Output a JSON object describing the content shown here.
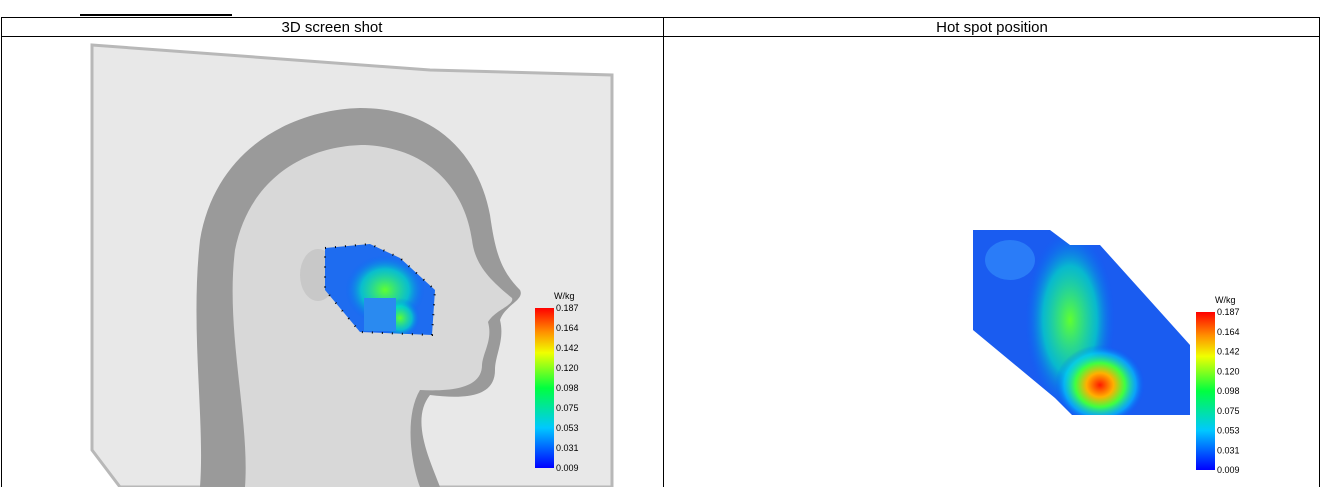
{
  "table": {
    "headers": [
      "3D screen shot",
      "Hot spot position"
    ]
  },
  "colorbars": [
    {
      "unit": "W/kg",
      "labels": [
        "0.187",
        "0.164",
        "0.142",
        "0.120",
        "0.098",
        "0.075",
        "0.053",
        "0.031",
        "0.009"
      ]
    },
    {
      "unit": "W/kg",
      "labels": [
        "0.187",
        "0.164",
        "0.142",
        "0.120",
        "0.098",
        "0.075",
        "0.053",
        "0.031",
        "0.009"
      ]
    }
  ]
}
